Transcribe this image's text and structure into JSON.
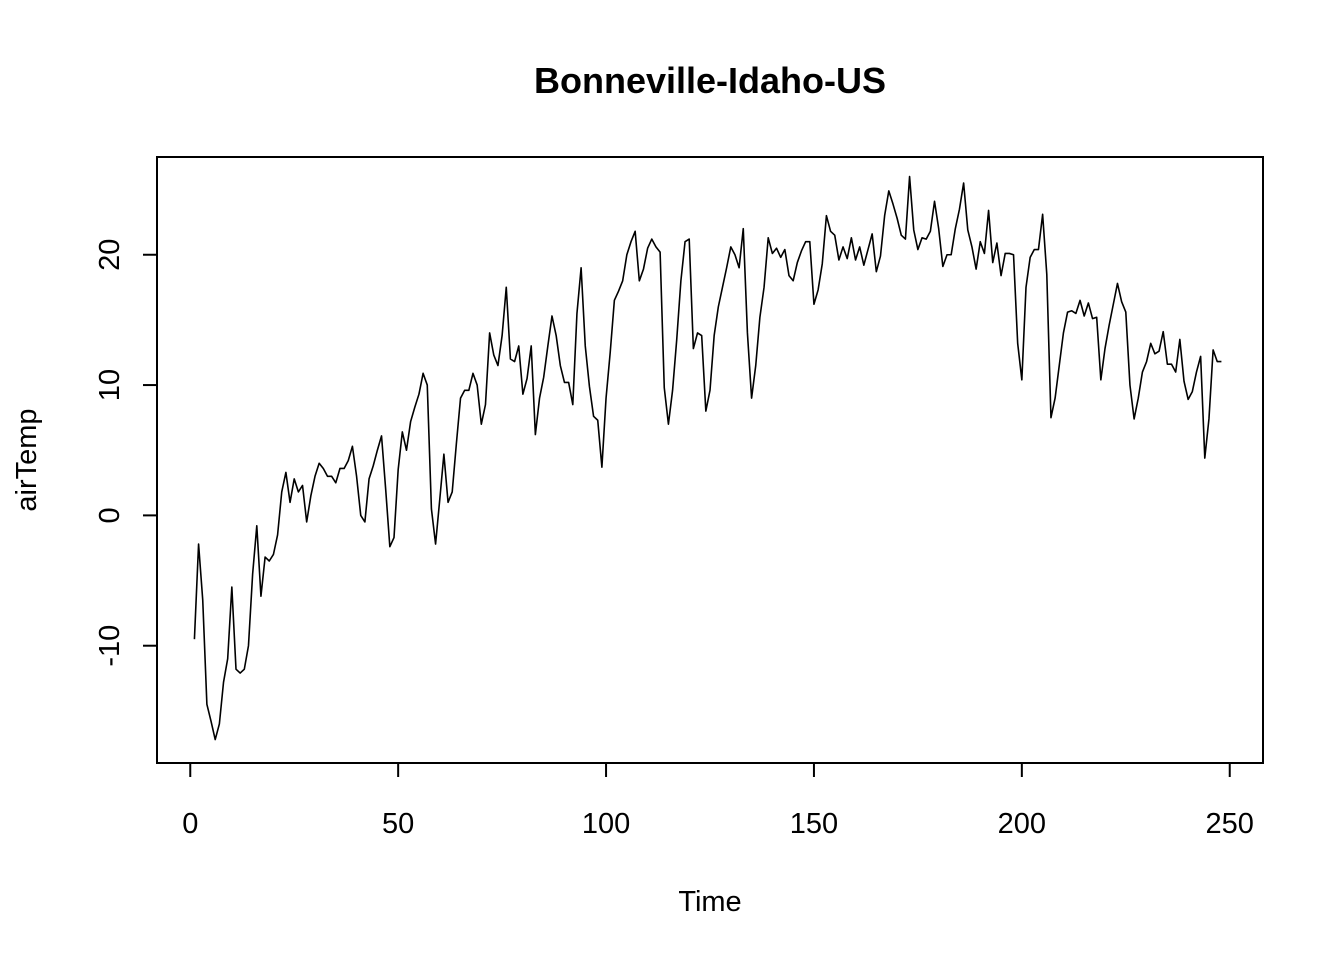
{
  "chart_data": {
    "type": "line",
    "title": "Bonneville-Idaho-US",
    "xlabel": "Time",
    "ylabel": "airTemp",
    "xlim": [
      -8,
      258
    ],
    "ylim": [
      -19,
      27.5
    ],
    "xticks": [
      0,
      50,
      100,
      150,
      200,
      250
    ],
    "xtick_labels": [
      "0",
      "50",
      "100",
      "150",
      "200",
      "250"
    ],
    "yticks": [
      -10,
      0,
      10,
      20
    ],
    "ytick_labels": [
      "-10",
      "0",
      "10",
      "20"
    ],
    "grid": false,
    "legend": "none",
    "line_color": "#000000",
    "x": [
      1,
      2,
      3,
      4,
      5,
      6,
      7,
      8,
      9,
      10,
      11,
      12,
      13,
      14,
      15,
      16,
      17,
      18,
      19,
      20,
      21,
      22,
      23,
      24,
      25,
      26,
      27,
      28,
      29,
      30,
      31,
      32,
      33,
      34,
      35,
      36,
      37,
      38,
      39,
      40,
      41,
      42,
      43,
      44,
      45,
      46,
      47,
      48,
      49,
      50,
      51,
      52,
      53,
      54,
      55,
      56,
      57,
      58,
      59,
      60,
      61,
      62,
      63,
      64,
      65,
      66,
      67,
      68,
      69,
      70,
      71,
      72,
      73,
      74,
      75,
      76,
      77,
      78,
      79,
      80,
      81,
      82,
      83,
      84,
      85,
      86,
      87,
      88,
      89,
      90,
      91,
      92,
      93,
      94,
      95,
      96,
      97,
      98,
      99,
      100,
      101,
      102,
      103,
      104,
      105,
      106,
      107,
      108,
      109,
      110,
      111,
      112,
      113,
      114,
      115,
      116,
      117,
      118,
      119,
      120,
      121,
      122,
      123,
      124,
      125,
      126,
      127,
      128,
      129,
      130,
      131,
      132,
      133,
      134,
      135,
      136,
      137,
      138,
      139,
      140,
      141,
      142,
      143,
      144,
      145,
      146,
      147,
      148,
      149,
      150,
      151,
      152,
      153,
      154,
      155,
      156,
      157,
      158,
      159,
      160,
      161,
      162,
      163,
      164,
      165,
      166,
      167,
      168,
      169,
      170,
      171,
      172,
      173,
      174,
      175,
      176,
      177,
      178,
      179,
      180,
      181,
      182,
      183,
      184,
      185,
      186,
      187,
      188,
      189,
      190,
      191,
      192,
      193,
      194,
      195,
      196,
      197,
      198,
      199,
      200,
      201,
      202,
      203,
      204,
      205,
      206,
      207,
      208,
      209,
      210,
      211,
      212,
      213,
      214,
      215,
      216,
      217,
      218,
      219,
      220,
      221,
      222,
      223,
      224,
      225,
      226,
      227,
      228,
      229,
      230,
      231,
      232,
      233,
      234,
      235,
      236,
      237,
      238,
      239,
      240,
      241,
      242,
      243,
      244,
      245,
      246,
      247,
      248
    ],
    "y": [
      -9.5,
      -2.2,
      -6.5,
      -14.5,
      -15.8,
      -17.2,
      -16.0,
      -12.8,
      -11.0,
      -5.5,
      -11.8,
      -12.1,
      -11.8,
      -10.0,
      -4.5,
      -0.8,
      -6.2,
      -3.2,
      -3.5,
      -3.0,
      -1.5,
      1.8,
      3.3,
      1.0,
      2.8,
      1.8,
      2.3,
      -0.5,
      1.5,
      3.0,
      4.0,
      3.6,
      3.0,
      3.0,
      2.5,
      3.6,
      3.6,
      4.2,
      5.3,
      3.0,
      0.0,
      -0.5,
      2.8,
      3.8,
      5.0,
      6.1,
      2.0,
      -2.4,
      -1.7,
      3.5,
      6.4,
      5.0,
      7.2,
      8.3,
      9.3,
      10.9,
      10.0,
      0.5,
      -2.2,
      1.2,
      4.7,
      1.0,
      1.8,
      5.5,
      9.0,
      9.6,
      9.6,
      10.9,
      10.0,
      7.0,
      8.5,
      14.0,
      12.3,
      11.5,
      13.8,
      17.5,
      12.0,
      11.8,
      13.0,
      9.3,
      10.5,
      13.0,
      6.2,
      9.0,
      10.6,
      13.0,
      15.3,
      13.8,
      11.5,
      10.2,
      10.2,
      8.5,
      15.5,
      19.0,
      13.0,
      9.9,
      7.6,
      7.3,
      3.7,
      9.0,
      12.5,
      16.5,
      17.2,
      18.0,
      20.0,
      21.0,
      21.8,
      18.0,
      18.9,
      20.5,
      21.2,
      20.6,
      20.2,
      9.8,
      7.0,
      9.6,
      13.5,
      18.0,
      21.0,
      21.2,
      12.8,
      14.0,
      13.8,
      8.0,
      9.6,
      13.8,
      16.0,
      17.5,
      19.0,
      20.6,
      20.0,
      19.0,
      22.0,
      14.0,
      9.0,
      11.5,
      15.2,
      17.5,
      21.3,
      20.1,
      20.5,
      19.8,
      20.4,
      18.4,
      18.0,
      19.4,
      20.3,
      21.0,
      21.0,
      16.2,
      17.3,
      19.3,
      23.0,
      21.8,
      21.5,
      19.6,
      20.6,
      19.7,
      21.3,
      19.6,
      20.6,
      19.2,
      20.4,
      21.6,
      18.7,
      19.9,
      23.0,
      24.9,
      23.9,
      22.8,
      21.5,
      21.2,
      26.0,
      21.9,
      20.4,
      21.3,
      21.2,
      21.8,
      24.1,
      22.0,
      19.1,
      20.0,
      20.0,
      22.0,
      23.5,
      25.5,
      21.9,
      20.6,
      18.9,
      21.0,
      20.1,
      23.4,
      19.4,
      20.9,
      18.4,
      20.1,
      20.1,
      20.0,
      13.2,
      10.4,
      17.5,
      19.8,
      20.4,
      20.4,
      23.1,
      18.5,
      7.5,
      9.0,
      11.5,
      14.0,
      15.6,
      15.7,
      15.5,
      16.5,
      15.3,
      16.3,
      15.1,
      15.2,
      10.4,
      12.8,
      14.6,
      16.2,
      17.8,
      16.4,
      15.6,
      10.0,
      7.4,
      9.0,
      11.0,
      11.8,
      13.2,
      12.4,
      12.6,
      14.1,
      11.6,
      11.6,
      11.0,
      13.5,
      10.3,
      8.9,
      9.5,
      11.0,
      12.2,
      4.4,
      7.4,
      12.7,
      11.8,
      11.8
    ]
  }
}
